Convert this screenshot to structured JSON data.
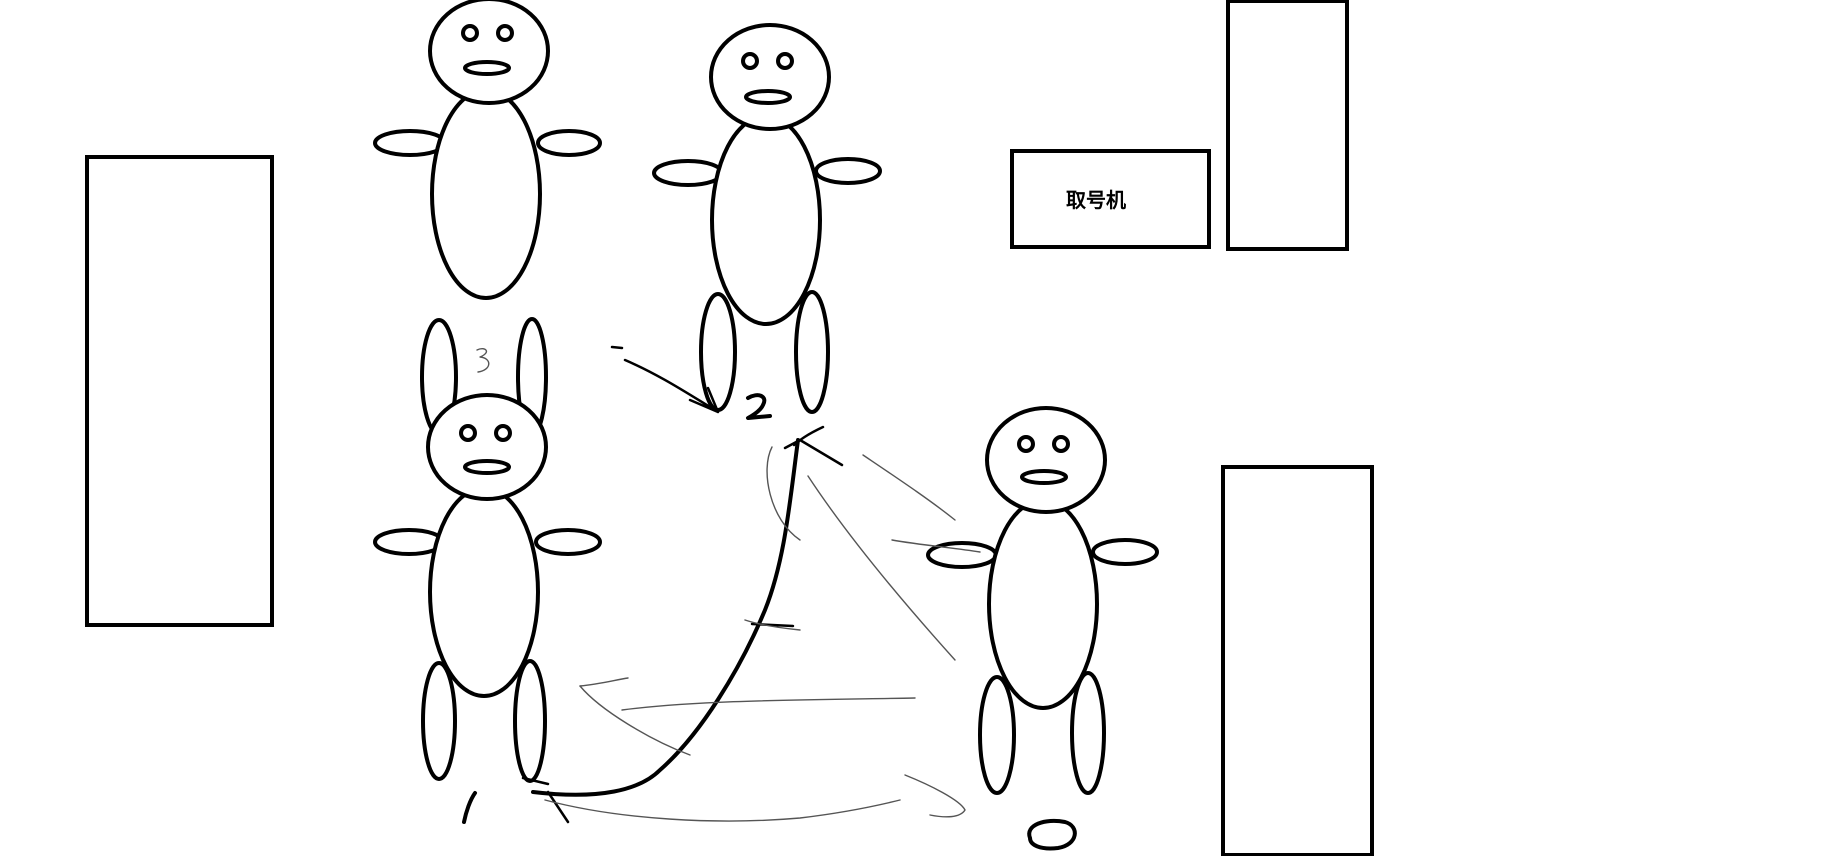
{
  "ticket_machine": {
    "label": "取号机"
  }
}
